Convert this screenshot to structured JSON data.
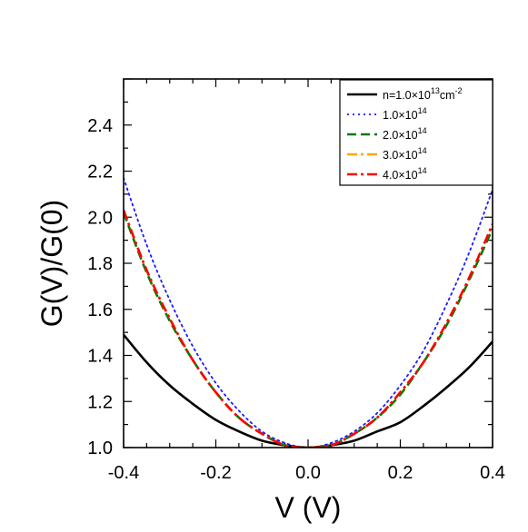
{
  "chart_data": {
    "type": "line",
    "title": "",
    "xlabel": "V (V)",
    "ylabel": "G(V)/G(0)",
    "xlim": [
      -0.4,
      0.4
    ],
    "ylim": [
      1.0,
      2.6
    ],
    "xticks": [
      "-0.4",
      "-0.2",
      "0.0",
      "0.2",
      "0.4"
    ],
    "yticks": [
      "1.0",
      "1.2",
      "1.4",
      "1.6",
      "1.8",
      "2.0",
      "2.2",
      "2.4"
    ],
    "xtick_values": [
      -0.4,
      -0.2,
      0.0,
      0.2,
      0.4
    ],
    "ytick_values": [
      1.0,
      1.2,
      1.4,
      1.6,
      1.8,
      2.0,
      2.2,
      2.4
    ],
    "grid": false,
    "legend_position": "top-right",
    "series": [
      {
        "legend": {
          "prefix": "n=1.0×10",
          "exp": "13",
          "mid": "cm",
          "exp2": "-2"
        },
        "color": "#000000",
        "dash": "solid",
        "width": 2.6,
        "x": [
          -0.4,
          -0.35,
          -0.3,
          -0.25,
          -0.2,
          -0.15,
          -0.1,
          -0.05,
          0.0,
          0.05,
          0.1,
          0.15,
          0.2,
          0.25,
          0.3,
          0.35,
          0.4
        ],
        "y": [
          1.49,
          1.37,
          1.27,
          1.19,
          1.12,
          1.07,
          1.03,
          1.01,
          1.0,
          1.01,
          1.03,
          1.07,
          1.11,
          1.18,
          1.26,
          1.35,
          1.46
        ]
      },
      {
        "legend": {
          "prefix": "1.0×10",
          "exp": "14",
          "mid": "",
          "exp2": ""
        },
        "color": "#1a1aff",
        "dash": "dotted",
        "width": 1.8,
        "x": [
          -0.4,
          -0.35,
          -0.3,
          -0.25,
          -0.2,
          -0.15,
          -0.1,
          -0.05,
          0.0,
          0.05,
          0.1,
          0.15,
          0.2,
          0.25,
          0.3,
          0.35,
          0.4
        ],
        "y": [
          2.17,
          1.88,
          1.64,
          1.44,
          1.28,
          1.16,
          1.07,
          1.02,
          1.0,
          1.02,
          1.07,
          1.15,
          1.27,
          1.42,
          1.62,
          1.85,
          2.12
        ]
      },
      {
        "legend": {
          "prefix": "2.0×10",
          "exp": "14",
          "mid": "",
          "exp2": ""
        },
        "color": "#007a00",
        "dash": "dashed",
        "width": 2.6,
        "x": [
          -0.4,
          -0.35,
          -0.3,
          -0.25,
          -0.2,
          -0.15,
          -0.1,
          -0.05,
          0.0,
          0.05,
          0.1,
          0.15,
          0.2,
          0.25,
          0.3,
          0.35,
          0.4
        ],
        "y": [
          2.02,
          1.76,
          1.55,
          1.38,
          1.24,
          1.13,
          1.06,
          1.01,
          1.0,
          1.01,
          1.06,
          1.13,
          1.23,
          1.37,
          1.53,
          1.73,
          1.95
        ]
      },
      {
        "legend": {
          "prefix": "3.0×10",
          "exp": "14",
          "mid": "",
          "exp2": ""
        },
        "color": "#ffa500",
        "dash": "dashdot",
        "width": 2.6,
        "x": [
          -0.4,
          -0.35,
          -0.3,
          -0.25,
          -0.2,
          -0.15,
          -0.1,
          -0.05,
          0.0,
          0.05,
          0.1,
          0.15,
          0.2,
          0.25,
          0.3,
          0.35,
          0.4
        ],
        "y": [
          2.03,
          1.77,
          1.56,
          1.38,
          1.24,
          1.13,
          1.06,
          1.01,
          1.0,
          1.01,
          1.06,
          1.13,
          1.24,
          1.37,
          1.54,
          1.74,
          1.97
        ]
      },
      {
        "legend": {
          "prefix": "4.0×10",
          "exp": "14",
          "mid": "",
          "exp2": ""
        },
        "color": "#ff0000",
        "dash": "dashdot",
        "width": 2.6,
        "x": [
          -0.4,
          -0.35,
          -0.3,
          -0.25,
          -0.2,
          -0.15,
          -0.1,
          -0.05,
          0.0,
          0.05,
          0.1,
          0.15,
          0.2,
          0.25,
          0.3,
          0.35,
          0.4
        ],
        "y": [
          2.03,
          1.77,
          1.56,
          1.38,
          1.24,
          1.13,
          1.06,
          1.01,
          1.0,
          1.01,
          1.06,
          1.13,
          1.24,
          1.37,
          1.54,
          1.74,
          1.97
        ]
      }
    ]
  }
}
